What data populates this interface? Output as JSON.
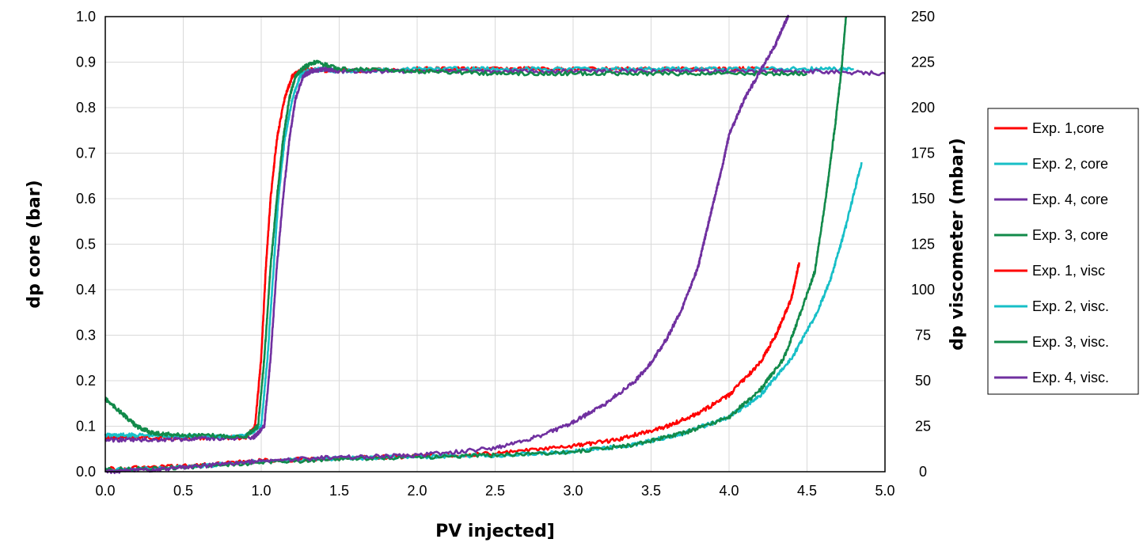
{
  "chart_data": {
    "type": "line",
    "xlabel": "PV injected]",
    "ylabel_left": "dp core (bar)",
    "ylabel_right": "dp viscometer (mbar)",
    "xlim": [
      0,
      5
    ],
    "ylim_left": [
      0,
      1
    ],
    "ylim_right": [
      0,
      250
    ],
    "x_ticks": [
      "0.0",
      "0.5",
      "1.0",
      "1.5",
      "2.0",
      "2.5",
      "3.0",
      "3.5",
      "4.0",
      "4.5",
      "5.0"
    ],
    "y_left_ticks": [
      "0.0",
      "0.1",
      "0.2",
      "0.3",
      "0.4",
      "0.5",
      "0.6",
      "0.7",
      "0.8",
      "0.9",
      "1.0"
    ],
    "y_right_ticks": [
      "0",
      "25",
      "50",
      "75",
      "100",
      "125",
      "150",
      "175",
      "200",
      "225",
      "250"
    ],
    "grid": true,
    "legend_position": "right",
    "colors": {
      "red": "#ff0000",
      "cyan": "#17bfc7",
      "green": "#128a4a",
      "purple": "#7030a0"
    },
    "series": [
      {
        "name": "Exp. 1,core",
        "axis": "left",
        "color": "#ff0000",
        "x": [
          0,
          0.2,
          0.5,
          0.9,
          0.96,
          1.0,
          1.03,
          1.06,
          1.1,
          1.15,
          1.2,
          1.25,
          1.3,
          1.5,
          2.0,
          2.5,
          3.0,
          3.5,
          4.0,
          4.3
        ],
        "y": [
          0.075,
          0.075,
          0.075,
          0.075,
          0.1,
          0.25,
          0.45,
          0.6,
          0.73,
          0.82,
          0.87,
          0.88,
          0.885,
          0.88,
          0.885,
          0.885,
          0.885,
          0.885,
          0.885,
          0.885
        ]
      },
      {
        "name": "Exp. 2, core",
        "axis": "left",
        "color": "#17bfc7",
        "x": [
          0,
          0.2,
          0.5,
          0.9,
          1.0,
          1.04,
          1.08,
          1.11,
          1.15,
          1.2,
          1.25,
          1.3,
          1.4,
          1.5,
          2.0,
          2.5,
          3.0,
          3.5,
          4.0,
          4.5,
          4.8
        ],
        "y": [
          0.08,
          0.08,
          0.078,
          0.078,
          0.1,
          0.25,
          0.45,
          0.6,
          0.73,
          0.82,
          0.87,
          0.88,
          0.885,
          0.88,
          0.885,
          0.885,
          0.885,
          0.885,
          0.885,
          0.885,
          0.885
        ]
      },
      {
        "name": "Exp. 4, core",
        "axis": "left",
        "color": "#7030a0",
        "x": [
          0,
          0.3,
          0.6,
          0.95,
          1.02,
          1.06,
          1.1,
          1.14,
          1.18,
          1.22,
          1.27,
          1.32,
          1.4,
          1.5,
          2.0,
          2.5,
          3.0,
          3.5,
          4.0,
          4.5,
          5.0
        ],
        "y": [
          0.07,
          0.07,
          0.072,
          0.075,
          0.1,
          0.25,
          0.45,
          0.6,
          0.73,
          0.82,
          0.87,
          0.88,
          0.885,
          0.88,
          0.88,
          0.88,
          0.88,
          0.88,
          0.88,
          0.88,
          0.875
        ]
      },
      {
        "name": "Exp. 3, core",
        "axis": "left",
        "color": "#128a4a",
        "x": [
          0,
          0.1,
          0.2,
          0.3,
          0.5,
          0.9,
          0.98,
          1.02,
          1.06,
          1.1,
          1.14,
          1.18,
          1.22,
          1.28,
          1.35,
          1.5,
          2.0,
          2.5,
          3.0,
          3.5,
          4.0,
          4.5
        ],
        "y": [
          0.16,
          0.13,
          0.1,
          0.085,
          0.08,
          0.078,
          0.1,
          0.25,
          0.45,
          0.6,
          0.73,
          0.82,
          0.87,
          0.89,
          0.9,
          0.885,
          0.88,
          0.875,
          0.875,
          0.875,
          0.875,
          0.875
        ]
      },
      {
        "name": "Exp. 1, visc",
        "axis": "right",
        "color": "#ff0000",
        "x": [
          0,
          0.5,
          1.0,
          1.5,
          2.0,
          2.5,
          3.0,
          3.3,
          3.6,
          3.8,
          4.0,
          4.2,
          4.3,
          4.4,
          4.45
        ],
        "y": [
          1.5,
          3,
          6,
          7.5,
          8.5,
          10,
          14,
          18,
          25,
          32,
          42,
          60,
          75,
          95,
          115
        ]
      },
      {
        "name": "Exp. 2, visc.",
        "axis": "right",
        "color": "#17bfc7",
        "x": [
          0,
          0.5,
          1.0,
          1.5,
          2.0,
          2.5,
          3.0,
          3.4,
          3.7,
          4.0,
          4.2,
          4.4,
          4.55,
          4.65,
          4.75,
          4.85
        ],
        "y": [
          1,
          2.5,
          5.5,
          7.5,
          8,
          9,
          11,
          15,
          21,
          30,
          42,
          62,
          85,
          105,
          135,
          170
        ]
      },
      {
        "name": "Exp. 3, visc.",
        "axis": "right",
        "color": "#128a4a",
        "x": [
          0,
          0.5,
          1.0,
          1.5,
          2.0,
          2.5,
          3.0,
          3.4,
          3.7,
          4.0,
          4.2,
          4.35,
          4.45,
          4.55,
          4.62,
          4.68,
          4.72,
          4.75
        ],
        "y": [
          1,
          2.5,
          5,
          7,
          8,
          9,
          11,
          15,
          21,
          30,
          45,
          62,
          85,
          110,
          150,
          190,
          220,
          250
        ]
      },
      {
        "name": "Exp. 4, visc.",
        "axis": "right",
        "color": "#7030a0",
        "x": [
          0,
          0.3,
          0.6,
          1.0,
          1.5,
          2.0,
          2.5,
          2.8,
          3.0,
          3.2,
          3.4,
          3.5,
          3.6,
          3.7,
          3.8,
          3.85,
          3.9,
          3.95,
          4.0,
          4.1,
          4.2,
          4.3,
          4.35,
          4.38
        ],
        "y": [
          0,
          1,
          3,
          6,
          8,
          9,
          13,
          20,
          27,
          37,
          50,
          60,
          73,
          90,
          112,
          130,
          148,
          165,
          185,
          205,
          220,
          235,
          245,
          250
        ]
      }
    ]
  }
}
